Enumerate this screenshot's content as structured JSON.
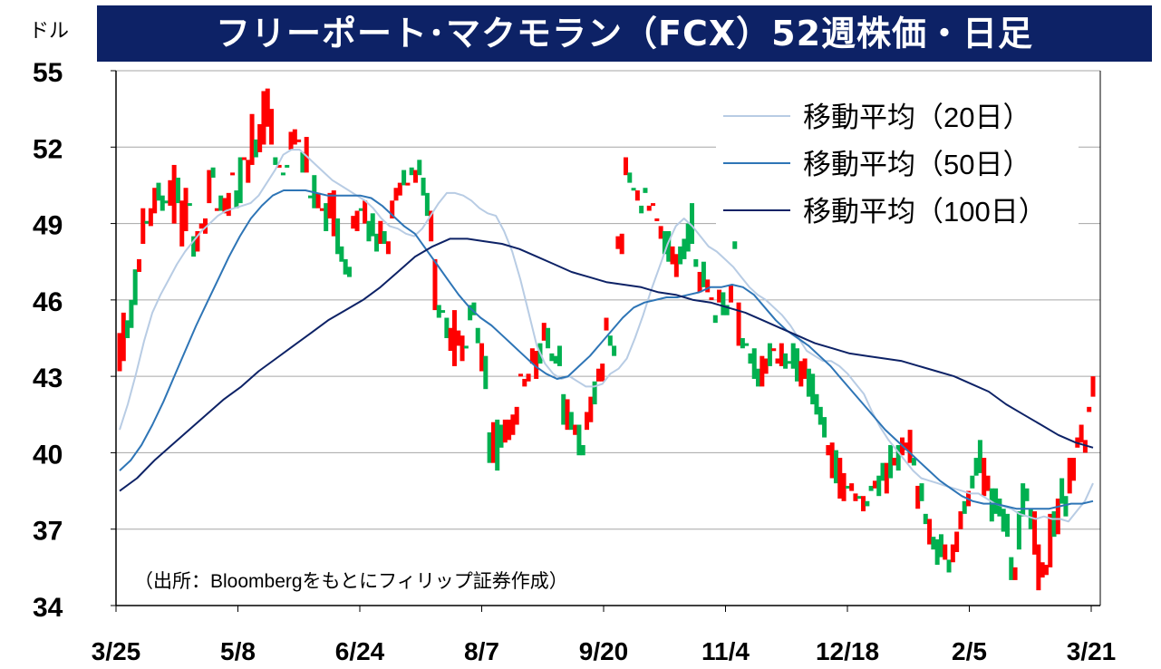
{
  "title": "フリーポート･マクモラン（FCX）52週株価・日足",
  "unit": "ドル",
  "source_note": "（出所：Bloombergをもとにフィリップ証券作成）",
  "colors": {
    "up": "#ff0000",
    "down": "#00b050",
    "ma20": "#b8cce4",
    "ma50": "#2e75b6",
    "ma100": "#0d2266",
    "title_bg": "#0d2266"
  },
  "chart_data": {
    "type": "candlestick",
    "title": "フリーポート･マクモラン（FCX）52週株価・日足",
    "ylabel": "ドル",
    "ylim": [
      34,
      55
    ],
    "yticks": [
      34,
      37,
      40,
      43,
      46,
      49,
      52,
      55
    ],
    "xticks": [
      "3/25",
      "5/8",
      "6/24",
      "8/7",
      "9/20",
      "11/4",
      "12/18",
      "2/5",
      "3/21"
    ],
    "x_days": 250,
    "grid": "horizontal",
    "legend_position": "top-right",
    "legend": [
      "移動平均（20日）",
      "移動平均（50日）",
      "移動平均（100日）"
    ],
    "annotation": "（出所：Bloombergをもとにフィリップ証券作成）",
    "candles": [
      [
        0,
        44.7,
        43.2
      ],
      [
        1,
        45.5,
        43.6
      ],
      [
        2,
        45.2,
        44.5
      ],
      [
        3,
        46.0,
        44.9
      ],
      [
        4,
        47.2,
        45.8
      ],
      [
        5,
        47.6,
        47.1
      ],
      [
        6,
        49.6,
        48.2
      ],
      [
        7,
        49.1,
        49.0
      ],
      [
        8,
        49.6,
        48.9
      ],
      [
        9,
        50.4,
        49.4
      ],
      [
        10,
        50.6,
        49.9
      ],
      [
        11,
        50.1,
        49.5
      ],
      [
        12,
        49.9,
        49.8
      ],
      [
        13,
        50.7,
        49.7
      ],
      [
        14,
        51.3,
        49.0
      ],
      [
        15,
        50.8,
        49.8
      ],
      [
        16,
        49.9,
        48.1
      ],
      [
        17,
        50.4,
        48.7
      ],
      [
        18,
        49.8,
        49.7
      ],
      [
        19,
        48.5,
        47.7
      ],
      [
        20,
        48.7,
        47.9
      ],
      [
        21,
        49.0,
        48.8
      ],
      [
        22,
        49.2,
        48.6
      ],
      [
        23,
        51.1,
        49.8
      ],
      [
        24,
        51.2,
        50.8
      ],
      [
        25,
        49.6,
        49.5
      ],
      [
        26,
        50.1,
        49.5
      ],
      [
        27,
        50.0,
        49.4
      ],
      [
        28,
        50.2,
        49.3
      ],
      [
        29,
        51.0,
        50.9
      ],
      [
        30,
        50.3,
        49.6
      ],
      [
        31,
        51.6,
        49.8
      ],
      [
        32,
        51.6,
        51.5
      ],
      [
        33,
        51.5,
        50.6
      ],
      [
        34,
        53.3,
        51.3
      ],
      [
        35,
        52.3,
        51.6
      ],
      [
        36,
        52.9,
        51.8
      ],
      [
        37,
        54.2,
        52.1
      ],
      [
        38,
        54.3,
        52.8
      ],
      [
        39,
        53.5,
        52.1
      ],
      [
        40,
        51.6,
        51.3
      ],
      [
        41,
        51.3,
        51.2
      ],
      [
        42,
        51.0,
        51.0
      ],
      [
        43,
        51.3,
        51.2
      ],
      [
        44,
        52.6,
        51.9
      ],
      [
        45,
        52.7,
        52.1
      ],
      [
        46,
        52.3,
        52.2
      ],
      [
        47,
        51.8,
        51.0
      ],
      [
        48,
        52.4,
        51.0
      ],
      [
        49,
        50.1,
        50.0
      ],
      [
        50,
        50.9,
        49.6
      ],
      [
        51,
        50.2,
        49.6
      ],
      [
        52,
        49.6,
        49.6
      ],
      [
        53,
        49.8,
        48.7
      ],
      [
        54,
        50.2,
        49.2
      ],
      [
        55,
        50.3,
        48.5
      ],
      [
        56,
        49.2,
        47.8
      ],
      [
        57,
        48.1,
        47.5
      ],
      [
        58,
        47.6,
        47.0
      ],
      [
        59,
        47.3,
        46.9
      ],
      [
        60,
        49.3,
        48.8
      ],
      [
        61,
        49.5,
        48.7
      ],
      [
        62,
        49.6,
        49.5
      ],
      [
        63,
        49.9,
        49.0
      ],
      [
        64,
        49.1,
        48.3
      ],
      [
        65,
        49.4,
        48.5
      ],
      [
        66,
        48.6,
        47.9
      ],
      [
        67,
        49.1,
        48.2
      ],
      [
        68,
        48.7,
        48.2
      ],
      [
        69,
        48.3,
        47.8
      ],
      [
        70,
        49.9,
        49.2
      ],
      [
        71,
        50.4,
        49.9
      ],
      [
        72,
        50.6,
        50.1
      ],
      [
        73,
        51.1,
        50.5
      ],
      [
        74,
        50.6,
        50.5
      ],
      [
        75,
        51.2,
        50.9
      ],
      [
        76,
        51.1,
        50.6
      ],
      [
        77,
        51.5,
        50.9
      ],
      [
        78,
        50.8,
        50.1
      ],
      [
        79,
        50.2,
        49.3
      ],
      [
        80,
        49.5,
        48.3
      ],
      [
        81,
        47.6,
        45.6
      ],
      [
        82,
        45.8,
        45.3
      ],
      [
        83,
        45.6,
        45.5
      ],
      [
        84,
        45.3,
        44.5
      ],
      [
        85,
        44.9,
        44.0
      ],
      [
        86,
        45.6,
        43.4
      ],
      [
        87,
        44.8,
        44.2
      ],
      [
        88,
        44.6,
        43.6
      ],
      [
        89,
        44.2,
        44.1
      ],
      [
        90,
        45.8,
        45.2
      ],
      [
        91,
        45.9,
        45.4
      ],
      [
        92,
        44.9,
        44.3
      ],
      [
        93,
        44.3,
        43.2
      ],
      [
        94,
        43.8,
        42.5
      ],
      [
        95,
        40.8,
        39.6
      ],
      [
        96,
        41.2,
        39.6
      ],
      [
        97,
        41.3,
        39.3
      ],
      [
        98,
        41.1,
        40.2
      ],
      [
        99,
        41.3,
        40.4
      ],
      [
        100,
        41.3,
        40.5
      ],
      [
        101,
        41.5,
        40.7
      ],
      [
        102,
        41.8,
        41.1
      ],
      [
        103,
        43.1,
        43.0
      ],
      [
        104,
        42.9,
        42.6
      ],
      [
        105,
        43.1,
        42.8
      ],
      [
        106,
        44.1,
        43.5
      ],
      [
        107,
        44.0,
        42.9
      ],
      [
        108,
        44.3,
        43.5
      ],
      [
        109,
        45.1,
        44.4
      ],
      [
        110,
        44.9,
        44.1
      ],
      [
        111,
        43.9,
        43.6
      ],
      [
        112,
        43.8,
        43.5
      ],
      [
        113,
        44.2,
        43.4
      ],
      [
        114,
        42.3,
        41.1
      ],
      [
        115,
        42.1,
        40.9
      ],
      [
        116,
        41.6,
        40.9
      ],
      [
        117,
        41.1,
        40.7
      ],
      [
        118,
        41.1,
        39.9
      ],
      [
        119,
        40.3,
        39.9
      ],
      [
        120,
        41.6,
        40.9
      ],
      [
        121,
        42.2,
        41.2
      ],
      [
        122,
        42.8,
        41.9
      ],
      [
        123,
        43.3,
        42.8
      ],
      [
        124,
        43.5,
        42.8
      ],
      [
        125,
        45.3,
        44.8
      ],
      [
        126,
        44.6,
        44.2
      ],
      [
        127,
        44.2,
        43.8
      ],
      [
        128,
        48.5,
        48.0
      ],
      [
        129,
        48.6,
        47.8
      ],
      [
        130,
        51.6,
        50.9
      ],
      [
        131,
        51.0,
        50.6
      ],
      [
        132,
        50.4,
        50.4
      ],
      [
        133,
        50.3,
        49.9
      ],
      [
        134,
        49.7,
        49.4
      ],
      [
        135,
        50.4,
        50.2
      ],
      [
        136,
        49.7,
        49.5
      ],
      [
        137,
        49.8,
        49.7
      ],
      [
        138,
        49.2,
        49.1
      ],
      [
        139,
        48.9,
        48.4
      ],
      [
        140,
        48.7,
        47.8
      ],
      [
        141,
        48.7,
        47.5
      ],
      [
        142,
        48.1,
        47.4
      ],
      [
        143,
        47.8,
        46.9
      ],
      [
        144,
        48.1,
        47.4
      ],
      [
        145,
        48.4,
        47.6
      ],
      [
        146,
        49.0,
        47.9
      ],
      [
        147,
        49.8,
        48.2
      ],
      [
        148,
        47.6,
        47.3
      ],
      [
        149,
        47.1,
        46.3
      ],
      [
        150,
        47.5,
        46.5
      ],
      [
        151,
        46.8,
        46.3
      ],
      [
        152,
        46.1,
        46.0
      ],
      [
        153,
        45.4,
        45.1
      ],
      [
        154,
        46.4,
        45.9
      ],
      [
        155,
        46.3,
        45.4
      ],
      [
        156,
        45.8,
        45.4
      ],
      [
        157,
        46.6,
        45.9
      ],
      [
        158,
        48.3,
        48.0
      ],
      [
        159,
        45.9,
        44.2
      ],
      [
        160,
        44.5,
        44.1
      ],
      [
        161,
        44.3,
        44.2
      ],
      [
        162,
        43.9,
        43.5
      ],
      [
        163,
        44.1,
        42.9
      ],
      [
        164,
        43.3,
        42.6
      ],
      [
        165,
        43.8,
        42.6
      ],
      [
        166,
        43.7,
        43.1
      ],
      [
        167,
        44.3,
        43.4
      ],
      [
        168,
        44.1,
        44.0
      ],
      [
        169,
        43.7,
        43.5
      ],
      [
        170,
        44.3,
        43.4
      ],
      [
        171,
        43.9,
        43.3
      ],
      [
        172,
        43.6,
        43.5
      ],
      [
        173,
        44.3,
        43.3
      ],
      [
        174,
        44.1,
        42.8
      ],
      [
        175,
        43.6,
        42.6
      ],
      [
        176,
        43.7,
        42.9
      ],
      [
        177,
        43.3,
        42.2
      ],
      [
        178,
        43.1,
        41.9
      ],
      [
        179,
        42.3,
        41.5
      ],
      [
        180,
        41.8,
        41.1
      ],
      [
        181,
        41.4,
        40.6
      ],
      [
        182,
        40.3,
        39.9
      ],
      [
        183,
        40.4,
        39.0
      ],
      [
        184,
        40.1,
        38.8
      ],
      [
        185,
        39.8,
        38.2
      ],
      [
        186,
        39.2,
        38.1
      ],
      [
        187,
        38.7,
        38.6
      ],
      [
        188,
        38.8,
        38.5
      ],
      [
        189,
        38.4,
        38.1
      ],
      [
        190,
        38.3,
        38.2
      ],
      [
        191,
        38.3,
        37.7
      ],
      [
        192,
        38.1,
        37.9
      ],
      [
        193,
        38.7,
        38.5
      ],
      [
        194,
        38.9,
        38.6
      ],
      [
        195,
        39.1,
        38.3
      ],
      [
        196,
        39.6,
        38.9
      ],
      [
        197,
        39.6,
        38.4
      ],
      [
        198,
        40.3,
        39.0
      ],
      [
        199,
        39.8,
        39.5
      ],
      [
        200,
        40.3,
        39.3
      ],
      [
        201,
        40.6,
        39.9
      ],
      [
        202,
        40.4,
        40.1
      ],
      [
        203,
        40.9,
        39.6
      ],
      [
        204,
        39.8,
        39.5
      ],
      [
        205,
        38.7,
        37.8
      ],
      [
        206,
        38.8,
        38.1
      ],
      [
        207,
        37.6,
        37.2
      ],
      [
        208,
        37.4,
        36.4
      ],
      [
        209,
        36.7,
        36.2
      ],
      [
        210,
        36.6,
        35.6
      ],
      [
        211,
        36.8,
        35.9
      ],
      [
        212,
        36.4,
        35.8
      ],
      [
        213,
        35.8,
        35.3
      ],
      [
        214,
        36.4,
        35.7
      ],
      [
        215,
        36.9,
        36.1
      ],
      [
        216,
        37.7,
        37.0
      ],
      [
        217,
        38.1,
        37.6
      ],
      [
        218,
        38.5,
        37.9
      ],
      [
        219,
        39.1,
        38.6
      ],
      [
        220,
        39.8,
        39.1
      ],
      [
        221,
        40.5,
        39.2
      ],
      [
        222,
        39.8,
        38.3
      ],
      [
        223,
        39.1,
        38.5
      ],
      [
        224,
        38.6,
        37.3
      ],
      [
        225,
        38.6,
        37.6
      ],
      [
        226,
        38.2,
        37.5
      ],
      [
        227,
        37.8,
        36.9
      ],
      [
        228,
        37.6,
        36.7
      ],
      [
        229,
        35.9,
        35.0
      ],
      [
        230,
        35.5,
        35.0
      ],
      [
        231,
        37.7,
        36.2
      ],
      [
        232,
        38.8,
        37.5
      ],
      [
        233,
        38.6,
        38.1
      ],
      [
        234,
        37.8,
        37.0
      ],
      [
        235,
        37.7,
        36.0
      ],
      [
        236,
        36.4,
        34.6
      ],
      [
        237,
        35.7,
        35.1
      ],
      [
        238,
        35.6,
        35.2
      ],
      [
        239,
        37.6,
        35.5
      ],
      [
        240,
        37.7,
        36.7
      ],
      [
        241,
        38.2,
        36.8
      ],
      [
        242,
        39.0,
        38.0
      ],
      [
        243,
        38.3,
        37.5
      ],
      [
        244,
        39.8,
        38.4
      ],
      [
        245,
        39.8,
        38.9
      ],
      [
        246,
        40.6,
        40.2
      ],
      [
        247,
        41.1,
        40.4
      ],
      [
        248,
        40.5,
        40.0
      ],
      [
        249,
        41.8,
        41.6
      ],
      [
        250,
        43.0,
        42.2
      ]
    ],
    "candle_colors": "rrgggrrgrrgggrrgrrggrrrrgrgrrrggrrrgrrrrgrggrrrgrggrrgrrggggrrgrgggrgrrrrgrgrgggrrgggrrrrggggrggrggrrrrrrrrrgrgggggrgrggrrgrrrggrrrggrggrrrrggrrgggggrgrrgrggrgrgggggrrgrrrggggrrgggggrrgrrgrrgrggrggrgrgrrrgrggrgggrgrrrgrgggrrggggggrggggrrrrrgrggr",
    "series": [
      {
        "name": "移動平均（20日）",
        "values": [
          40.9,
          41.9,
          43.1,
          44.4,
          45.5,
          46.2,
          46.8,
          47.4,
          47.9,
          48.3,
          48.7,
          49.0,
          49.3,
          49.5,
          49.6,
          49.7,
          49.8,
          50.1,
          50.6,
          51.1,
          51.7,
          51.9,
          51.9,
          51.6,
          51.3,
          51.0,
          50.7,
          50.5,
          50.3,
          50.1,
          49.9,
          49.6,
          49.2,
          48.9,
          48.8,
          48.6,
          48.5,
          48.8,
          49.3,
          49.8,
          50.2,
          50.2,
          50.1,
          49.9,
          49.6,
          49.4,
          49.3,
          48.7,
          47.9,
          46.8,
          45.5,
          44.2,
          43.5,
          43.1,
          42.9,
          43.0,
          42.8,
          42.6,
          42.6,
          42.7,
          43.1,
          43.3,
          43.7,
          44.5,
          45.4,
          46.4,
          47.3,
          48.2,
          48.9,
          49.2,
          48.9,
          48.5,
          48.1,
          47.9,
          47.6,
          47.3,
          46.9,
          46.5,
          46.2,
          46.0,
          45.7,
          45.4,
          45.0,
          44.5,
          44.0,
          43.8,
          43.6,
          43.6,
          43.4,
          43.1,
          42.7,
          42.3,
          41.6,
          41.0,
          40.5,
          40.1,
          39.7,
          39.3,
          39.0,
          38.9,
          38.8,
          38.7,
          38.6,
          38.5,
          38.4,
          38.4,
          38.2,
          38.0,
          37.9,
          37.8,
          37.6,
          37.5,
          37.4,
          37.5,
          37.4,
          37.4,
          37.3,
          37.7,
          38.1,
          38.8
        ]
      },
      {
        "name": "移動平均（50日）",
        "values": [
          39.3,
          39.7,
          40.3,
          41.1,
          42.0,
          43.0,
          44.0,
          45.0,
          45.9,
          46.8,
          47.7,
          48.5,
          49.2,
          49.7,
          50.1,
          50.3,
          50.3,
          50.3,
          50.2,
          50.1,
          50.1,
          50.1,
          50.1,
          50.0,
          49.7,
          49.3,
          48.9,
          48.6,
          48.0,
          47.4,
          46.8,
          46.2,
          45.7,
          45.3,
          45.0,
          44.6,
          44.2,
          43.8,
          43.4,
          43.1,
          42.9,
          43.0,
          43.4,
          43.8,
          44.3,
          44.8,
          45.3,
          45.7,
          45.9,
          46.0,
          46.1,
          46.1,
          46.2,
          46.3,
          46.5,
          46.5,
          46.6,
          46.5,
          46.2,
          45.7,
          45.2,
          44.8,
          44.5,
          44.2,
          43.8,
          43.4,
          42.9,
          42.4,
          41.9,
          41.4,
          40.9,
          40.5,
          40.1,
          39.7,
          39.3,
          38.9,
          38.6,
          38.3,
          38.1,
          38.0,
          38.0,
          37.9,
          37.8,
          37.8,
          37.8,
          37.8,
          37.9,
          38.0,
          38.0,
          38.1
        ]
      },
      {
        "name": "移動平均（100日）",
        "values": [
          38.5,
          39.0,
          39.7,
          40.3,
          40.9,
          41.5,
          42.1,
          42.6,
          43.2,
          43.7,
          44.2,
          44.7,
          45.2,
          45.6,
          46.0,
          46.5,
          47.1,
          47.7,
          48.1,
          48.4,
          48.4,
          48.3,
          48.2,
          48.0,
          47.7,
          47.4,
          47.1,
          46.9,
          46.7,
          46.6,
          46.5,
          46.3,
          46.2,
          46.0,
          45.9,
          45.7,
          45.5,
          45.2,
          44.9,
          44.6,
          44.3,
          44.1,
          43.9,
          43.8,
          43.7,
          43.6,
          43.4,
          43.2,
          43.0,
          42.7,
          42.4,
          41.9,
          41.5,
          41.1,
          40.7,
          40.4,
          40.2
        ]
      }
    ]
  }
}
